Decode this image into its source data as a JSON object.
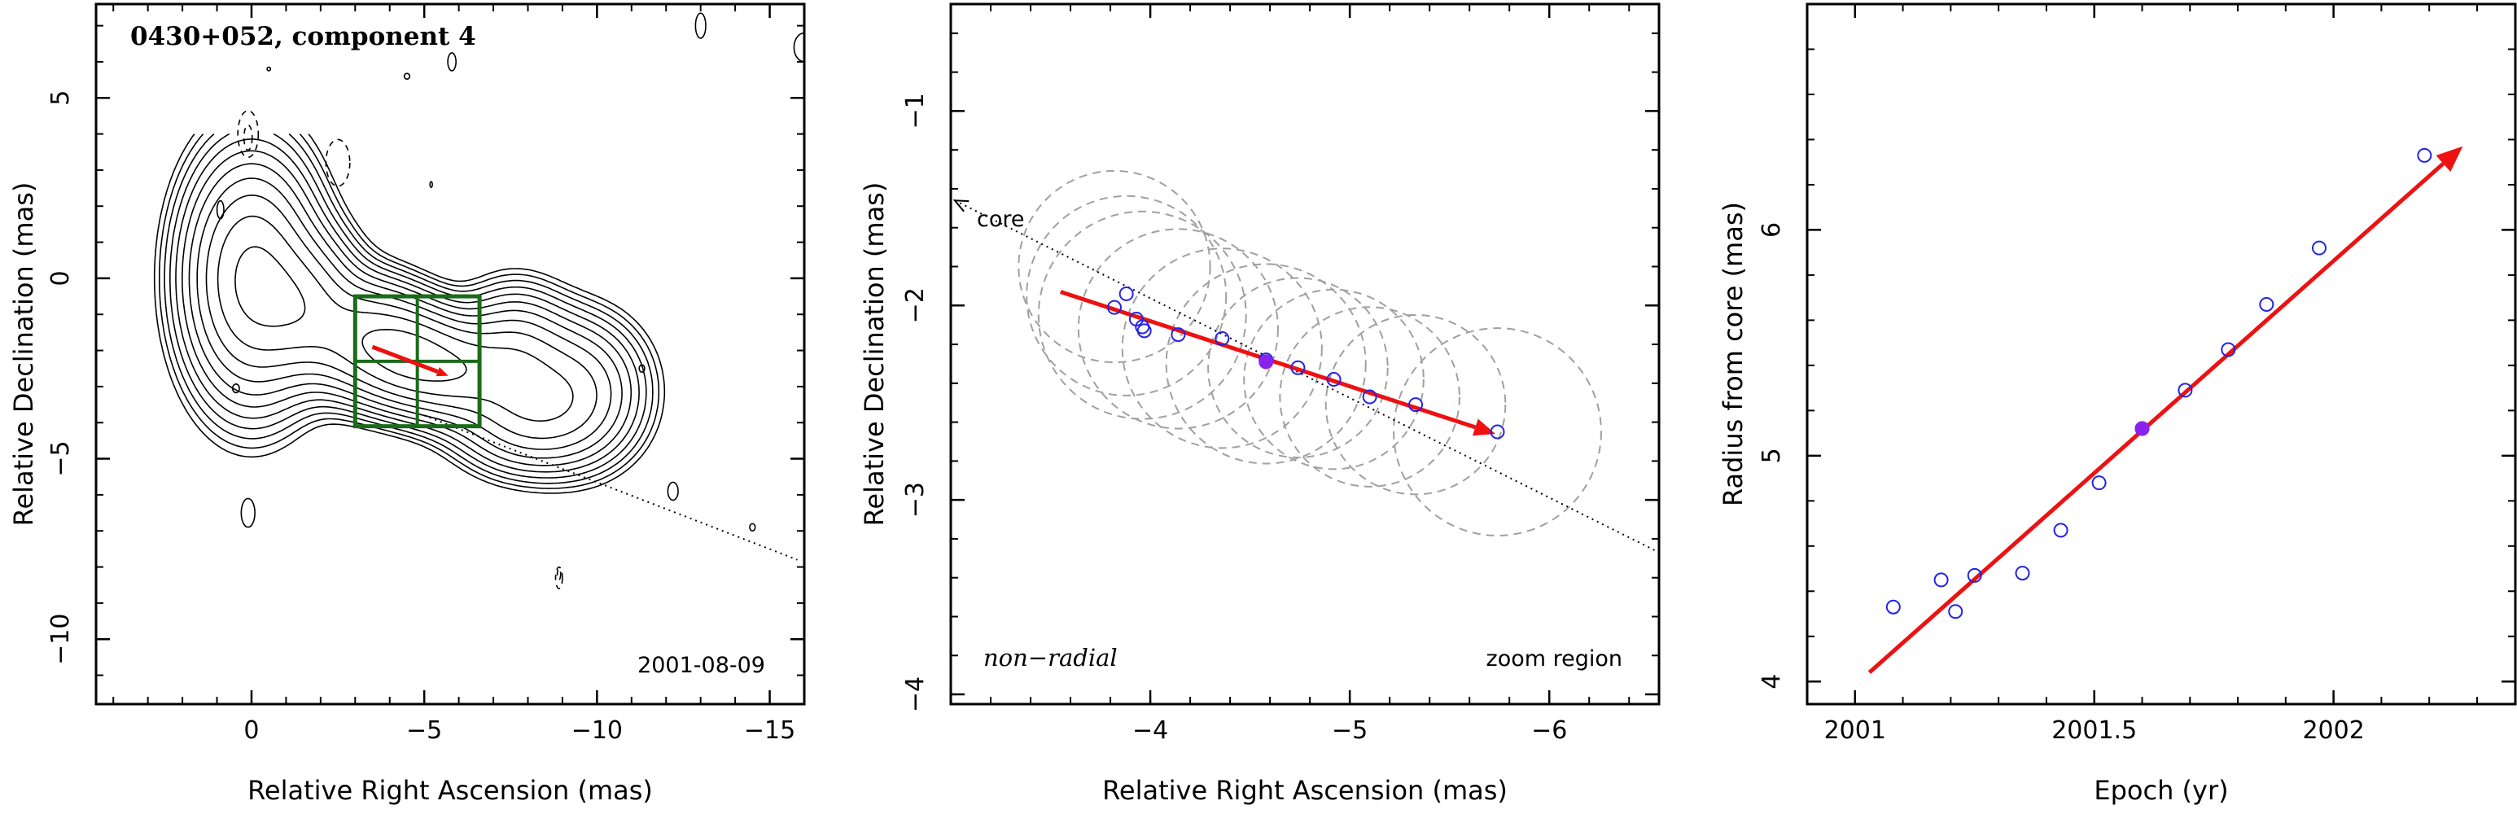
{
  "chart_data": [
    {
      "type": "contour",
      "title": "0430+052, component 4",
      "xlabel": "Relative Right Ascension (mas)",
      "ylabel": "Relative Declination (mas)",
      "xlim": [
        4.5,
        -16
      ],
      "ylim": [
        -11.8,
        7.6
      ],
      "xticks": [
        0,
        -5,
        -10,
        -15
      ],
      "yticks": [
        5,
        0,
        -5,
        -10
      ],
      "tick_labels": {
        "x": [
          "0",
          "−5",
          "−10",
          "−15"
        ],
        "y": [
          "5",
          "0",
          "−5",
          "−10"
        ]
      },
      "annotations": [
        "2001-08-09"
      ],
      "zoom_box": {
        "x": [
          -3,
          -6.6
        ],
        "y": [
          -0.5,
          -4.1
        ]
      },
      "motion_arrow": {
        "from": [
          -3.5,
          -1.9
        ],
        "to": [
          -5.7,
          -2.7
        ]
      },
      "core_direction_line": {
        "from": [
          -5,
          -3.8
        ],
        "to": [
          -15.8,
          -7.8
        ]
      },
      "contour_levels": 12
    },
    {
      "type": "scatter",
      "xlabel": "Relative Right Ascension (mas)",
      "ylabel": "Relative Declination (mas)",
      "xlim": [
        -3.0,
        -6.55
      ],
      "ylim": [
        -4.05,
        -0.45
      ],
      "xticks": [
        -4,
        -5,
        -6
      ],
      "yticks": [
        -1,
        -2,
        -3,
        -4
      ],
      "tick_labels": {
        "x": [
          "−4",
          "−5",
          "−6"
        ],
        "y": [
          "−1",
          "−2",
          "−3",
          "−4"
        ]
      },
      "annotations": {
        "core": "core",
        "motion": "non−radial",
        "region": "zoom region"
      },
      "points": [
        {
          "x": -3.82,
          "y": -2.01
        },
        {
          "x": -3.88,
          "y": -1.94
        },
        {
          "x": -3.93,
          "y": -2.07
        },
        {
          "x": -3.96,
          "y": -2.11
        },
        {
          "x": -3.97,
          "y": -2.13
        },
        {
          "x": -4.14,
          "y": -2.15
        },
        {
          "x": -4.36,
          "y": -2.17
        },
        {
          "x": -4.58,
          "y": -2.28
        },
        {
          "x": -4.74,
          "y": -2.32
        },
        {
          "x": -4.92,
          "y": -2.38
        },
        {
          "x": -5.1,
          "y": -2.47
        },
        {
          "x": -5.33,
          "y": -2.51
        },
        {
          "x": -5.74,
          "y": -2.65
        }
      ],
      "highlighted_point": {
        "x": -4.58,
        "y": -2.29
      },
      "circles": [
        {
          "x": -3.82,
          "y": -1.8,
          "r": 0.48
        },
        {
          "x": -3.88,
          "y": -1.95,
          "r": 0.5
        },
        {
          "x": -3.96,
          "y": -2.05,
          "r": 0.52
        },
        {
          "x": -4.14,
          "y": -2.12,
          "r": 0.5
        },
        {
          "x": -4.36,
          "y": -2.22,
          "r": 0.5
        },
        {
          "x": -4.58,
          "y": -2.3,
          "r": 0.5
        },
        {
          "x": -4.74,
          "y": -2.32,
          "r": 0.45
        },
        {
          "x": -4.92,
          "y": -2.38,
          "r": 0.45
        },
        {
          "x": -5.1,
          "y": -2.47,
          "r": 0.45
        },
        {
          "x": -5.33,
          "y": -2.51,
          "r": 0.45
        },
        {
          "x": -5.74,
          "y": -2.65,
          "r": 0.52
        }
      ],
      "fit_arrow": {
        "from": [
          -3.55,
          -1.93
        ],
        "to": [
          -5.73,
          -2.66
        ]
      },
      "core_line": {
        "from": [
          -3.02,
          -1.46
        ],
        "to": [
          -6.55,
          -3.27
        ]
      }
    },
    {
      "type": "scatter",
      "xlabel": "Epoch (yr)",
      "ylabel": "Radius from core (mas)",
      "xlim": [
        2000.9,
        2002.38
      ],
      "ylim": [
        3.9,
        7.0
      ],
      "xticks": [
        2001,
        2001.5,
        2002
      ],
      "yticks": [
        4,
        5,
        6
      ],
      "tick_labels": {
        "x": [
          "2001",
          "2001.5",
          "2002"
        ],
        "y": [
          "4",
          "5",
          "6"
        ]
      },
      "points": [
        {
          "x": 2001.08,
          "y": 4.33
        },
        {
          "x": 2001.18,
          "y": 4.45
        },
        {
          "x": 2001.21,
          "y": 4.31
        },
        {
          "x": 2001.25,
          "y": 4.47
        },
        {
          "x": 2001.35,
          "y": 4.48
        },
        {
          "x": 2001.43,
          "y": 4.67
        },
        {
          "x": 2001.51,
          "y": 4.88
        },
        {
          "x": 2001.6,
          "y": 5.12
        },
        {
          "x": 2001.69,
          "y": 5.29
        },
        {
          "x": 2001.78,
          "y": 5.47
        },
        {
          "x": 2001.86,
          "y": 5.67
        },
        {
          "x": 2001.97,
          "y": 5.92
        },
        {
          "x": 2002.19,
          "y": 6.33
        }
      ],
      "highlighted_point": {
        "x": 2001.6,
        "y": 5.12
      },
      "fit_arrow": {
        "from": [
          2001.03,
          4.04
        ],
        "to": [
          2002.27,
          6.37
        ]
      }
    }
  ]
}
